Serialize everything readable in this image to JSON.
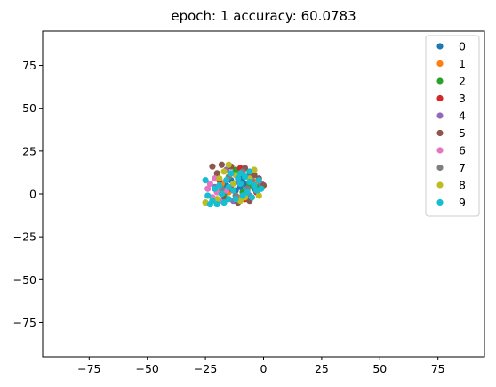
{
  "chart_data": {
    "type": "scatter",
    "title": "epoch:  1   accuracy: 60.0783",
    "xlabel": "",
    "ylabel": "",
    "xlim": [
      -95,
      95
    ],
    "ylim": [
      -95,
      95
    ],
    "xticks": [
      -75,
      -50,
      -25,
      0,
      25,
      50,
      75
    ],
    "yticks": [
      75,
      50,
      25,
      0,
      -25,
      -50,
      -75
    ],
    "xtick_labels": [
      "−75",
      "−50",
      "−25",
      "0",
      "25",
      "50",
      "75"
    ],
    "ytick_labels": [
      "75",
      "50",
      "25",
      "0",
      "−25",
      "−50",
      "−75"
    ],
    "grid": false,
    "legend_position": "top-right",
    "series": [
      {
        "name": "0",
        "color": "#1f77b4",
        "points": [
          [
            -14,
            8
          ],
          [
            -10,
            4
          ],
          [
            -6,
            11
          ],
          [
            -12,
            2
          ],
          [
            -8,
            6
          ],
          [
            -4,
            3
          ],
          [
            -16,
            5
          ],
          [
            -9,
            9
          ]
        ]
      },
      {
        "name": "1",
        "color": "#ff7f0e",
        "points": [
          [
            -18,
            6
          ],
          [
            -13,
            12
          ],
          [
            -7,
            2
          ],
          [
            -11,
            -2
          ],
          [
            -3,
            7
          ],
          [
            -15,
            1
          ]
        ]
      },
      {
        "name": "2",
        "color": "#2ca02c",
        "points": [
          [
            -20,
            10
          ],
          [
            -12,
            14
          ],
          [
            -6,
            5
          ],
          [
            -17,
            -1
          ],
          [
            -9,
            1
          ],
          [
            -2,
            4
          ]
        ]
      },
      {
        "name": "3",
        "color": "#d62728",
        "points": [
          [
            -10,
            15
          ],
          [
            -5,
            12
          ],
          [
            -14,
            3
          ],
          [
            -8,
            -3
          ],
          [
            -19,
            8
          ],
          [
            -3,
            1
          ]
        ]
      },
      {
        "name": "4",
        "color": "#9467bd",
        "points": [
          [
            -21,
            4
          ],
          [
            -16,
            14
          ],
          [
            -11,
            7
          ],
          [
            -6,
            -1
          ],
          [
            -13,
            -4
          ],
          [
            -1,
            6
          ]
        ]
      },
      {
        "name": "5",
        "color": "#8c564b",
        "points": [
          [
            -22,
            16
          ],
          [
            -18,
            17
          ],
          [
            -14,
            16
          ],
          [
            -8,
            15
          ],
          [
            -4,
            11
          ],
          [
            0,
            5
          ],
          [
            -6,
            -4
          ],
          [
            -17,
            -3
          ],
          [
            -11,
            -5
          ],
          [
            -2,
            9
          ],
          [
            -20,
            12
          ]
        ]
      },
      {
        "name": "6",
        "color": "#e377c2",
        "points": [
          [
            -24,
            3
          ],
          [
            -22,
            -2
          ],
          [
            -20,
            1
          ],
          [
            -23,
            6
          ],
          [
            -19,
            -4
          ],
          [
            -16,
            2
          ],
          [
            -21,
            9
          ]
        ]
      },
      {
        "name": "7",
        "color": "#7f7f7f",
        "points": [
          [
            -15,
            10
          ],
          [
            -9,
            13
          ],
          [
            -5,
            8
          ],
          [
            -12,
            -1
          ],
          [
            -7,
            3
          ],
          [
            -18,
            3
          ]
        ]
      },
      {
        "name": "8",
        "color": "#bcbd22",
        "points": [
          [
            -25,
            -5
          ],
          [
            -20,
            -3
          ],
          [
            -15,
            17
          ],
          [
            -12,
            11
          ],
          [
            -8,
            -2
          ],
          [
            -4,
            14
          ],
          [
            -19,
            9
          ],
          [
            -10,
            -4
          ],
          [
            -6,
            9
          ],
          [
            -13,
            6
          ],
          [
            -2,
            -1
          ],
          [
            -17,
            13
          ]
        ]
      },
      {
        "name": "9",
        "color": "#17becf",
        "points": [
          [
            -25,
            8
          ],
          [
            -24,
            -1
          ],
          [
            -23,
            -6
          ],
          [
            -21,
            3
          ],
          [
            -20,
            -6
          ],
          [
            -18,
            0
          ],
          [
            -16,
            8
          ],
          [
            -15,
            -3
          ],
          [
            -14,
            12
          ],
          [
            -13,
            2
          ],
          [
            -12,
            -3
          ],
          [
            -11,
            9
          ],
          [
            -10,
            6
          ],
          [
            -9,
            -1
          ],
          [
            -8,
            10
          ],
          [
            -7,
            1
          ],
          [
            -6,
            7
          ],
          [
            -5,
            -2
          ],
          [
            -4,
            5
          ],
          [
            -3,
            2
          ],
          [
            -2,
            8
          ],
          [
            -1,
            3
          ],
          [
            -19,
            5
          ],
          [
            -17,
            -5
          ],
          [
            -22,
            -4
          ],
          [
            -10,
            12
          ],
          [
            -6,
            13
          ],
          [
            -15,
            4
          ]
        ]
      }
    ]
  }
}
